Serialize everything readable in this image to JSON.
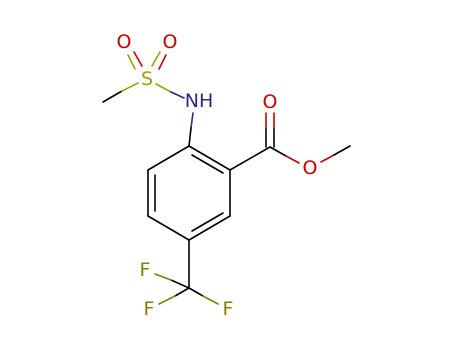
{
  "atoms": [
    {
      "label": "O"
    },
    {
      "label": "O"
    },
    {
      "label": "S"
    },
    {
      "label": "NH"
    },
    {
      "label": "O"
    },
    {
      "label": "O"
    },
    {
      "label": "F"
    },
    {
      "label": "F"
    },
    {
      "label": "F"
    }
  ]
}
